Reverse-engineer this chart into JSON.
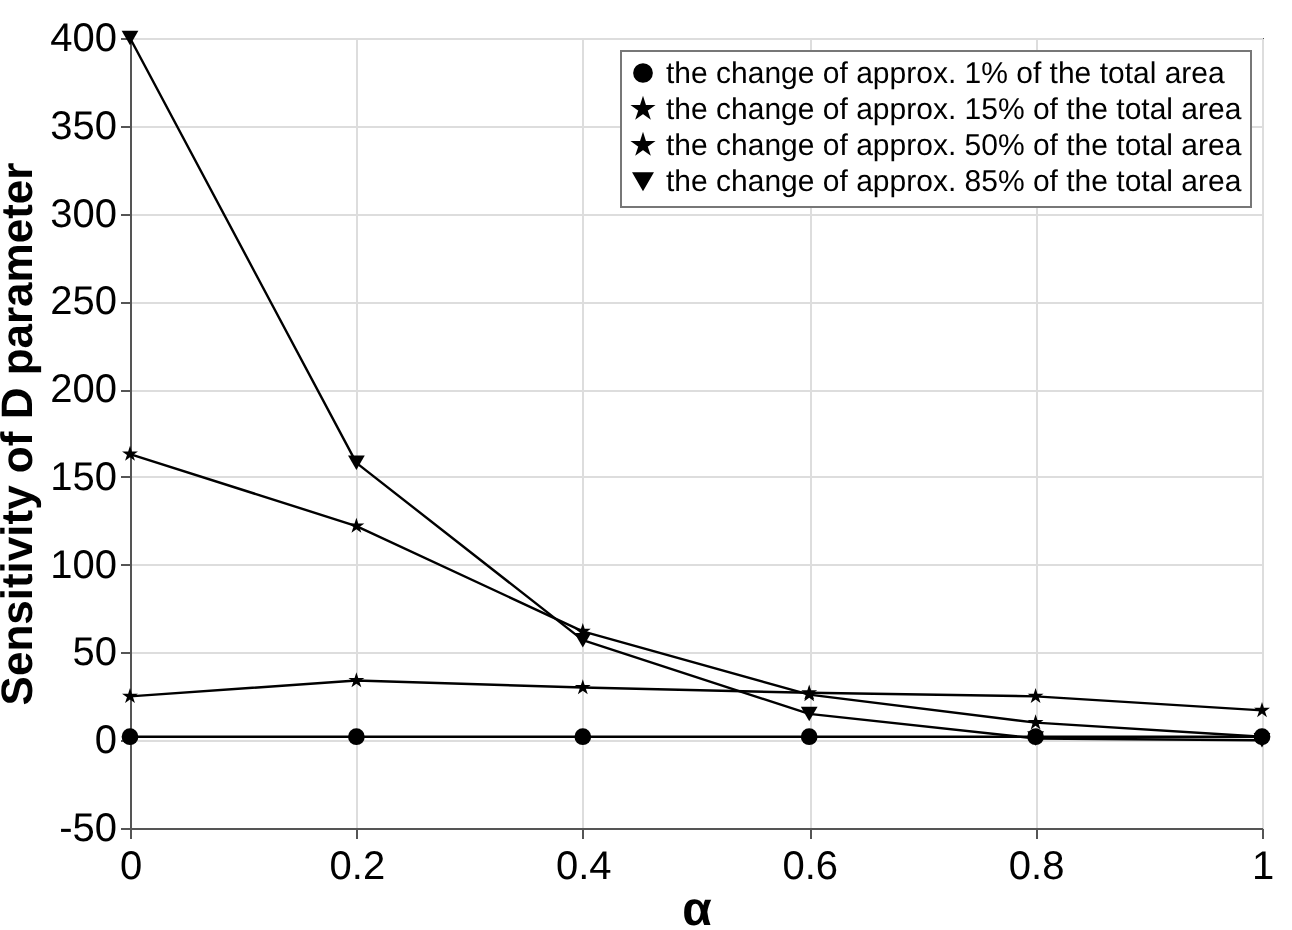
{
  "chart_data": {
    "type": "line",
    "xlabel": "α",
    "ylabel": "Sensitivity of D parameter",
    "x": [
      0,
      0.2,
      0.4,
      0.6,
      0.8,
      1
    ],
    "xlim": [
      0,
      1
    ],
    "xticks": [
      0,
      0.2,
      0.4,
      0.6,
      0.8,
      1
    ],
    "ylim": [
      -50,
      400
    ],
    "yticks": [
      -50,
      0,
      50,
      100,
      150,
      200,
      250,
      300,
      350,
      400
    ],
    "grid": true,
    "legend": "top right",
    "line_style": "solid",
    "series": [
      {
        "name": "the change of approx. 1% of the total area",
        "color": "#000000",
        "marker": "circle",
        "values": [
          2,
          2,
          2,
          2,
          2,
          2
        ]
      },
      {
        "name": "the change of approx. 15% of the total area",
        "color": "#000000",
        "marker": "star",
        "values": [
          25,
          34,
          30,
          27,
          25,
          17
        ]
      },
      {
        "name": "the change of approx. 50% of the total area",
        "color": "#000000",
        "marker": "star",
        "values": [
          163,
          122,
          62,
          26,
          10,
          2
        ]
      },
      {
        "name": "the change of approx. 85% of the total area",
        "color": "#000000",
        "marker": "triangle",
        "values": [
          400,
          158,
          57,
          15,
          1,
          0
        ]
      }
    ]
  }
}
